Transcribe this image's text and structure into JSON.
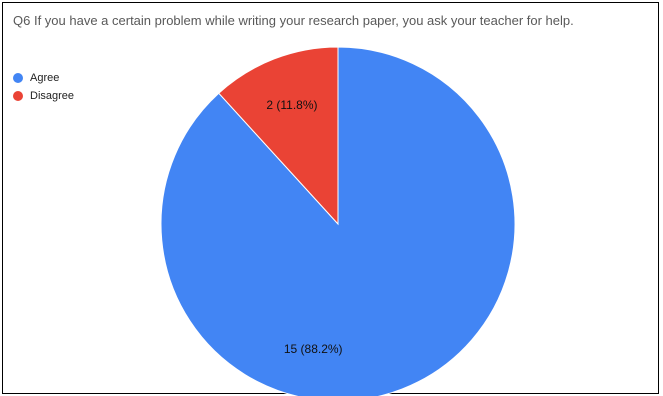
{
  "chart_data": {
    "type": "pie",
    "title": "Q6 If you have a certain problem while writing your research paper, you ask your teacher for help.",
    "categories": [
      "Agree",
      "Disagree"
    ],
    "values": [
      15,
      2
    ],
    "labels": [
      "15 (88.2%)",
      "2 (11.8%)"
    ],
    "colors": [
      "#4285f4",
      "#ea4335"
    ],
    "legend_position": "top-left"
  },
  "legend": {
    "items": [
      {
        "label": "Agree",
        "color": "#4285f4"
      },
      {
        "label": "Disagree",
        "color": "#ea4335"
      }
    ]
  }
}
